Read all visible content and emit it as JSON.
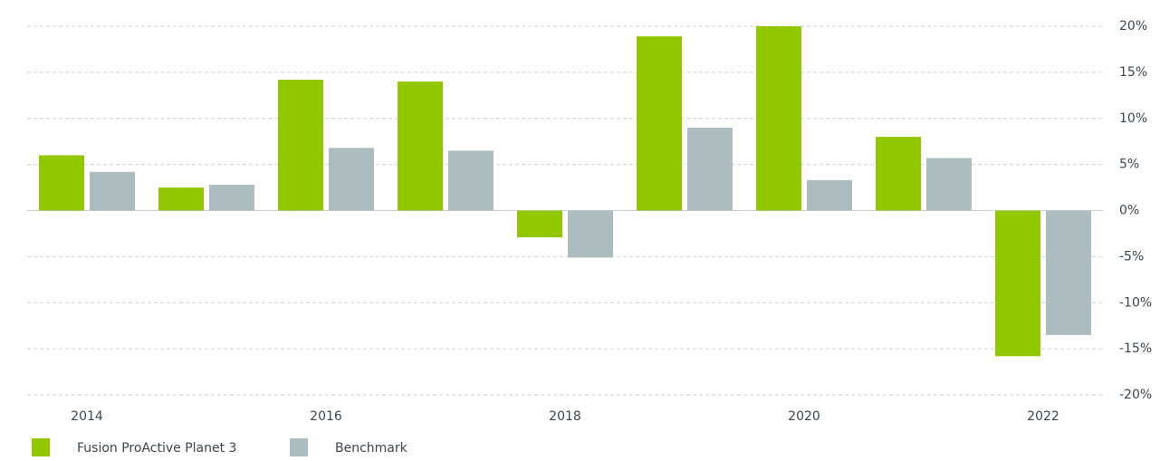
{
  "chart_data": {
    "type": "bar",
    "categories": [
      "2014",
      null,
      "2016",
      null,
      "2018",
      null,
      "2020",
      null,
      "2022"
    ],
    "series": [
      {
        "name": "Fusion ProActive Planet 3",
        "color": "#92c700",
        "values": [
          6.0,
          2.5,
          14.2,
          14.0,
          -2.9,
          18.9,
          20.0,
          8.0,
          -15.8
        ]
      },
      {
        "name": "Benchmark",
        "color": "#adbcc0",
        "values": [
          4.2,
          2.8,
          6.8,
          6.5,
          -5.1,
          9.0,
          3.3,
          5.7,
          -13.5
        ]
      }
    ],
    "ylim": [
      -20,
      20
    ],
    "yticks": [
      {
        "value": 20,
        "label": "20%"
      },
      {
        "value": 15,
        "label": "15%"
      },
      {
        "value": 10,
        "label": "10%"
      },
      {
        "value": 5,
        "label": "5%"
      },
      {
        "value": 0,
        "label": "0%"
      },
      {
        "value": -5,
        "label": "-5%"
      },
      {
        "value": -10,
        "label": "-10%"
      },
      {
        "value": -15,
        "label": "-15%"
      },
      {
        "value": -20,
        "label": "-20%"
      }
    ],
    "grid": true
  }
}
